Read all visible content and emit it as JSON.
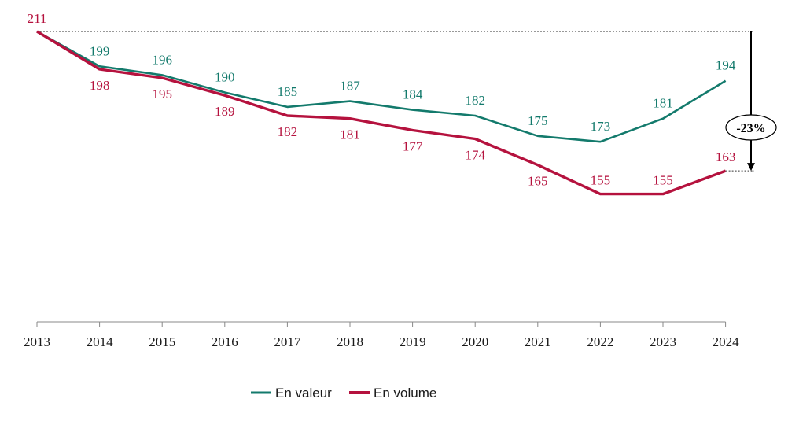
{
  "chart_data": {
    "type": "line",
    "title": "",
    "xlabel": "",
    "ylabel": "",
    "x": [
      "2013",
      "2014",
      "2015",
      "2016",
      "2017",
      "2018",
      "2019",
      "2020",
      "2021",
      "2022",
      "2023",
      "2024"
    ],
    "ylim": [
      111,
      211
    ],
    "grid": false,
    "legend": "bottom",
    "series": [
      {
        "name": "En valeur",
        "color": "#137a6c",
        "values": [
          211,
          199,
          196,
          190,
          185,
          187,
          184,
          182,
          175,
          173,
          181,
          194
        ]
      },
      {
        "name": "En volume",
        "color": "#b5123e",
        "values": [
          211,
          198,
          195,
          189,
          182,
          181,
          177,
          174,
          165,
          155,
          155,
          163
        ]
      }
    ],
    "annotation": {
      "text": "-23%",
      "from": 211,
      "to": 163
    }
  }
}
